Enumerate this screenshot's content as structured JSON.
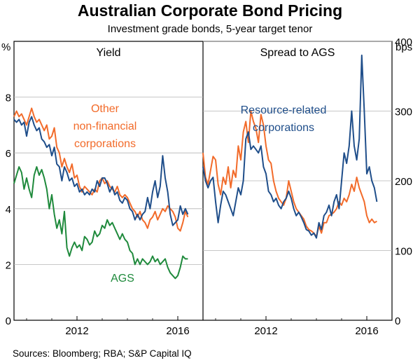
{
  "title": "Australian Corporate Bond Pricing",
  "subtitle": "Investment grade bonds, 5-year target tenor",
  "sources": "Sources:  Bloomberg; RBA; S&P Capital IQ",
  "chart_data": {
    "type": "line",
    "panels": [
      {
        "title": "Yield",
        "unit_label": "%",
        "ylim": [
          0,
          10
        ],
        "yticks": [
          0,
          2,
          4,
          6,
          8
        ],
        "xlim": [
          2009.5,
          2017.0
        ],
        "xticks": [
          2012,
          2016
        ],
        "series": [
          {
            "name": "Other non-financial corporations",
            "color": "#f26b2a",
            "x": [
              2009.5,
              2009.6,
              2009.7,
              2009.8,
              2009.9,
              2010.0,
              2010.1,
              2010.2,
              2010.3,
              2010.4,
              2010.5,
              2010.6,
              2010.7,
              2010.8,
              2010.9,
              2011.0,
              2011.1,
              2011.2,
              2011.3,
              2011.4,
              2011.5,
              2011.6,
              2011.7,
              2011.8,
              2011.9,
              2012.0,
              2012.1,
              2012.2,
              2012.3,
              2012.4,
              2012.5,
              2012.6,
              2012.7,
              2012.8,
              2012.9,
              2013.0,
              2013.1,
              2013.2,
              2013.3,
              2013.4,
              2013.5,
              2013.6,
              2013.7,
              2013.8,
              2013.9,
              2014.0,
              2014.1,
              2014.2,
              2014.3,
              2014.4,
              2014.5,
              2014.6,
              2014.7,
              2014.8,
              2014.9,
              2015.0,
              2015.1,
              2015.2,
              2015.3,
              2015.4,
              2015.5,
              2015.6,
              2015.7,
              2015.8,
              2015.9,
              2016.0,
              2016.1,
              2016.2,
              2016.3,
              2016.4
            ],
            "values": [
              7.3,
              7.5,
              7.3,
              7.4,
              7.2,
              7.0,
              7.3,
              7.6,
              7.3,
              7.1,
              7.2,
              7.0,
              6.8,
              7.0,
              6.5,
              6.6,
              6.9,
              6.2,
              6.0,
              5.5,
              5.8,
              5.5,
              5.3,
              5.6,
              5.1,
              5.2,
              4.8,
              4.6,
              4.8,
              4.7,
              4.6,
              4.5,
              4.7,
              4.6,
              5.0,
              5.1,
              4.9,
              5.0,
              4.8,
              4.7,
              4.6,
              4.8,
              4.5,
              4.4,
              4.5,
              4.4,
              4.2,
              4.0,
              3.9,
              3.7,
              3.9,
              3.6,
              3.5,
              3.3,
              3.6,
              3.7,
              3.9,
              3.6,
              3.8,
              4.0,
              3.9,
              4.1,
              4.0,
              3.9,
              3.7,
              3.3,
              3.2,
              3.5,
              3.9,
              3.7
            ]
          },
          {
            "name": "Resource-related corporations",
            "color": "#1f4e8a",
            "x": [
              2009.5,
              2009.6,
              2009.7,
              2009.8,
              2009.9,
              2010.0,
              2010.1,
              2010.2,
              2010.3,
              2010.4,
              2010.5,
              2010.6,
              2010.7,
              2010.8,
              2010.9,
              2011.0,
              2011.1,
              2011.2,
              2011.3,
              2011.4,
              2011.5,
              2011.6,
              2011.7,
              2011.8,
              2011.9,
              2012.0,
              2012.1,
              2012.2,
              2012.3,
              2012.4,
              2012.5,
              2012.6,
              2012.7,
              2012.8,
              2012.9,
              2013.0,
              2013.1,
              2013.2,
              2013.3,
              2013.4,
              2013.5,
              2013.6,
              2013.7,
              2013.8,
              2013.9,
              2014.0,
              2014.1,
              2014.2,
              2014.3,
              2014.4,
              2014.5,
              2014.6,
              2014.7,
              2014.8,
              2014.9,
              2015.0,
              2015.1,
              2015.2,
              2015.3,
              2015.4,
              2015.5,
              2015.6,
              2015.7,
              2015.8,
              2015.9,
              2016.0,
              2016.1,
              2016.2,
              2016.3,
              2016.4
            ],
            "values": [
              7.2,
              7.1,
              7.2,
              7.0,
              7.1,
              6.6,
              7.1,
              7.3,
              7.0,
              6.8,
              6.9,
              6.5,
              6.4,
              6.2,
              6.3,
              5.9,
              6.2,
              5.6,
              5.5,
              5.0,
              5.5,
              5.3,
              5.0,
              5.1,
              4.8,
              4.9,
              4.6,
              4.7,
              4.5,
              4.6,
              4.5,
              4.7,
              4.6,
              5.0,
              4.8,
              5.1,
              5.1,
              4.9,
              4.6,
              4.8,
              4.5,
              4.6,
              4.3,
              4.2,
              4.4,
              4.3,
              4.0,
              3.9,
              3.6,
              3.8,
              3.6,
              3.8,
              3.9,
              4.4,
              4.0,
              4.6,
              5.0,
              4.4,
              4.8,
              5.9,
              5.1,
              4.6,
              3.8,
              3.4,
              3.5,
              3.6,
              4.1,
              3.8,
              4.0,
              3.8
            ]
          },
          {
            "name": "AGS",
            "color": "#1f8a3c",
            "x": [
              2009.5,
              2009.6,
              2009.7,
              2009.8,
              2009.9,
              2010.0,
              2010.1,
              2010.2,
              2010.3,
              2010.4,
              2010.5,
              2010.6,
              2010.7,
              2010.8,
              2010.9,
              2011.0,
              2011.1,
              2011.2,
              2011.3,
              2011.4,
              2011.5,
              2011.6,
              2011.7,
              2011.8,
              2011.9,
              2012.0,
              2012.1,
              2012.2,
              2012.3,
              2012.4,
              2012.5,
              2012.6,
              2012.7,
              2012.8,
              2012.9,
              2013.0,
              2013.1,
              2013.2,
              2013.3,
              2013.4,
              2013.5,
              2013.6,
              2013.7,
              2013.8,
              2013.9,
              2014.0,
              2014.1,
              2014.2,
              2014.3,
              2014.4,
              2014.5,
              2014.6,
              2014.7,
              2014.8,
              2014.9,
              2015.0,
              2015.1,
              2015.2,
              2015.3,
              2015.4,
              2015.5,
              2015.6,
              2015.7,
              2015.8,
              2015.9,
              2016.0,
              2016.1,
              2016.2,
              2016.3,
              2016.4
            ],
            "values": [
              4.9,
              5.2,
              5.5,
              5.3,
              4.7,
              5.1,
              4.7,
              4.4,
              5.2,
              5.5,
              5.2,
              5.4,
              5.1,
              4.7,
              4.0,
              4.5,
              3.8,
              3.3,
              3.6,
              3.1,
              3.9,
              2.6,
              2.3,
              2.6,
              2.8,
              2.6,
              2.7,
              2.5,
              3.0,
              2.9,
              2.7,
              2.8,
              3.2,
              3.0,
              3.1,
              3.4,
              3.3,
              3.6,
              3.4,
              3.5,
              3.3,
              3.1,
              2.9,
              3.1,
              2.9,
              2.8,
              2.5,
              2.4,
              2.0,
              2.2,
              2.0,
              2.2,
              2.1,
              2.0,
              2.1,
              2.3,
              2.1,
              2.2,
              2.0,
              2.1,
              2.2,
              1.9,
              1.7,
              1.6,
              1.5,
              1.6,
              1.9,
              2.3,
              2.2,
              2.2
            ]
          }
        ],
        "annotations": [
          {
            "text_lines": [
              "Other",
              "non-financial",
              "corporations"
            ],
            "color": "#f26b2a"
          },
          {
            "text_lines": [
              "AGS"
            ],
            "color": "#1f8a3c"
          }
        ]
      },
      {
        "title": "Spread to AGS",
        "unit_label": "bps",
        "ylim": [
          0,
          400
        ],
        "yticks": [
          0,
          100,
          200,
          300,
          400
        ],
        "xlim": [
          2009.5,
          2017.0
        ],
        "xticks": [
          2012,
          2016
        ],
        "series": [
          {
            "name": "Other non-financial corporations",
            "color": "#f26b2a",
            "x": [
              2009.5,
              2009.6,
              2009.7,
              2009.8,
              2009.9,
              2010.0,
              2010.1,
              2010.2,
              2010.3,
              2010.4,
              2010.5,
              2010.6,
              2010.7,
              2010.8,
              2010.9,
              2011.0,
              2011.1,
              2011.2,
              2011.3,
              2011.4,
              2011.5,
              2011.6,
              2011.7,
              2011.8,
              2011.9,
              2012.0,
              2012.1,
              2012.2,
              2012.3,
              2012.4,
              2012.5,
              2012.6,
              2012.7,
              2012.8,
              2012.9,
              2013.0,
              2013.1,
              2013.2,
              2013.3,
              2013.4,
              2013.5,
              2013.6,
              2013.7,
              2013.8,
              2013.9,
              2014.0,
              2014.1,
              2014.2,
              2014.3,
              2014.4,
              2014.5,
              2014.6,
              2014.7,
              2014.8,
              2014.9,
              2015.0,
              2015.1,
              2015.2,
              2015.3,
              2015.4,
              2015.5,
              2015.6,
              2015.7,
              2015.8,
              2015.9,
              2016.0,
              2016.1,
              2016.2,
              2016.3,
              2016.4
            ],
            "values": [
              240,
              205,
              195,
              215,
              235,
              230,
              195,
              180,
              205,
              195,
              220,
              190,
              215,
              205,
              250,
              230,
              270,
              285,
              255,
              300,
              285,
              275,
              255,
              295,
              280,
              250,
              230,
              225,
              200,
              185,
              175,
              170,
              165,
              175,
              200,
              185,
              170,
              160,
              155,
              150,
              145,
              135,
              130,
              128,
              125,
              120,
              135,
              125,
              140,
              140,
              150,
              152,
              155,
              160,
              170,
              165,
              175,
              170,
              180,
              195,
              185,
              205,
              190,
              180,
              170,
              150,
              140,
              145,
              140,
              142
            ]
          },
          {
            "name": "Resource-related corporations",
            "color": "#1f4e8a",
            "x": [
              2009.5,
              2009.6,
              2009.7,
              2009.8,
              2009.9,
              2010.0,
              2010.1,
              2010.2,
              2010.3,
              2010.4,
              2010.5,
              2010.6,
              2010.7,
              2010.8,
              2010.9,
              2011.0,
              2011.1,
              2011.2,
              2011.3,
              2011.4,
              2011.5,
              2011.6,
              2011.7,
              2011.8,
              2011.9,
              2012.0,
              2012.1,
              2012.2,
              2012.3,
              2012.4,
              2012.5,
              2012.6,
              2012.7,
              2012.8,
              2012.9,
              2013.0,
              2013.1,
              2013.2,
              2013.3,
              2013.4,
              2013.5,
              2013.6,
              2013.7,
              2013.8,
              2013.9,
              2014.0,
              2014.1,
              2014.2,
              2014.3,
              2014.4,
              2014.5,
              2014.6,
              2014.7,
              2014.8,
              2014.9,
              2015.0,
              2015.1,
              2015.2,
              2015.3,
              2015.4,
              2015.5,
              2015.6,
              2015.7,
              2015.8,
              2015.9,
              2016.0,
              2016.1,
              2016.2,
              2016.3,
              2016.4
            ],
            "values": [
              220,
              200,
              190,
              200,
              205,
              170,
              140,
              165,
              185,
              180,
              170,
              160,
              150,
              170,
              190,
              180,
              200,
              260,
              270,
              245,
              250,
              245,
              240,
              250,
              220,
              210,
              185,
              180,
              170,
              175,
              165,
              160,
              170,
              175,
              185,
              175,
              160,
              150,
              155,
              148,
              140,
              130,
              128,
              122,
              125,
              118,
              140,
              130,
              150,
              155,
              165,
              150,
              170,
              180,
              160,
              200,
              240,
              225,
              250,
              300,
              250,
              230,
              260,
              380,
              300,
              210,
              220,
              200,
              190,
              170
            ]
          }
        ],
        "annotations": [
          {
            "text_lines": [
              "Resource-related",
              "corporations"
            ],
            "color": "#1f4e8a"
          }
        ]
      }
    ]
  }
}
